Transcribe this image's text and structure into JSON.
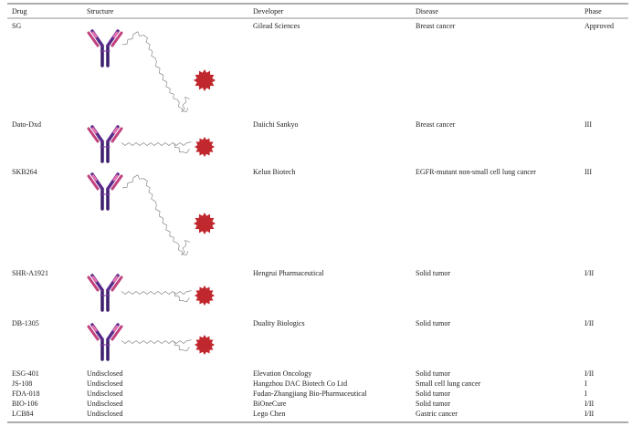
{
  "table": {
    "header": [
      "Drug",
      "Structure",
      "Developer",
      "Disease",
      "Phase"
    ],
    "rows": [
      {
        "drug": "SG",
        "developer": "Gilead Sciences",
        "disease": "Breast cancer",
        "phase": "Approved"
      },
      {
        "drug": "Dato-Dxd",
        "developer": "Daiichi Sankyo",
        "disease": "Breast cancer",
        "phase": "III"
      },
      {
        "drug": "SKB264",
        "developer": "Kelun Biotech",
        "disease": "EGFR-mutant non-small cell lung cancer",
        "phase": "III"
      },
      {
        "drug": "SHR-A1921",
        "developer": "Hengrui Pharmaceutical",
        "disease": "Solid tumor",
        "phase": "I/II"
      },
      {
        "drug": "DB-1305",
        "developer": "Duality Biologics",
        "disease": "Solid tumor",
        "phase": "I/II"
      },
      {
        "drug": "ESG-401",
        "structure": "Undisclosed",
        "developer": "Elevation Oncology",
        "disease": "Solid tumor",
        "phase": "I/II"
      },
      {
        "drug": "JS-108",
        "structure": "Undisclosed",
        "developer": "Hangzhou DAC Biotech Co Ltd",
        "disease": "Small cell lung cancer",
        "phase": "I"
      },
      {
        "drug": "FDA-018",
        "structure": "Undisclosed",
        "developer": "Fudan-Zhangjiang Bio-Pharmaceutical",
        "disease": "Solid tumor",
        "phase": "I"
      },
      {
        "drug": "BIO-106",
        "structure": "Undisclosed",
        "developer": "BiOneCure",
        "disease": "Solid tumor",
        "phase": "I/II"
      },
      {
        "drug": "LCB84",
        "structure": "Undisclosed",
        "developer": "Lego Chen",
        "disease": "Gastric cancer",
        "phase": "I/II"
      }
    ]
  }
}
